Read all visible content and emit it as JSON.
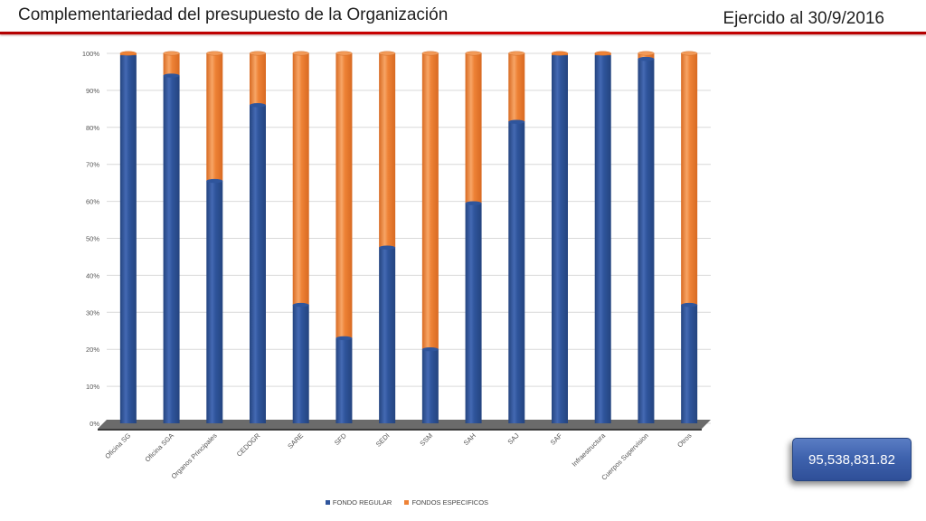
{
  "header": {
    "title": "Complementariedad del presupuesto de la Organización",
    "period": "Ejercido al 30/9/2016"
  },
  "total": {
    "value": "95,538,831.82"
  },
  "colors": {
    "regular": "#2f559c",
    "especificos": "#ee8236",
    "rule": "#c00000"
  },
  "chart_data": {
    "type": "bar",
    "stacked": true,
    "percent_stacked": true,
    "categories": [
      "Oficina SG",
      "Oficina SGA",
      "Organos Principales",
      "CEDOGR",
      "SARE",
      "SFD",
      "SEDI",
      "SSM",
      "SAH",
      "SAJ",
      "SAF",
      "Infraestructura",
      "Cuerpos Supervision",
      "Otros"
    ],
    "series": [
      {
        "name": "FONDO REGULAR",
        "color": "#2f559c",
        "values": [
          99.5,
          94,
          65.5,
          86,
          32,
          23,
          47.5,
          20,
          59.5,
          81.5,
          99.5,
          99.5,
          98.5,
          32
        ]
      },
      {
        "name": "FONDOS ESPECIFICOS",
        "color": "#ee8236",
        "values": [
          0.5,
          6,
          34.5,
          14,
          68,
          77,
          52.5,
          80,
          40.5,
          18.5,
          0.5,
          0.5,
          1.5,
          68
        ]
      }
    ],
    "yticks": [
      "0%",
      "10%",
      "20%",
      "30%",
      "40%",
      "50%",
      "60%",
      "70%",
      "80%",
      "90%",
      "100%"
    ],
    "ylim": [
      0,
      100
    ],
    "grid": true,
    "legend_position": "bottom",
    "title": "",
    "xlabel": "",
    "ylabel": ""
  }
}
